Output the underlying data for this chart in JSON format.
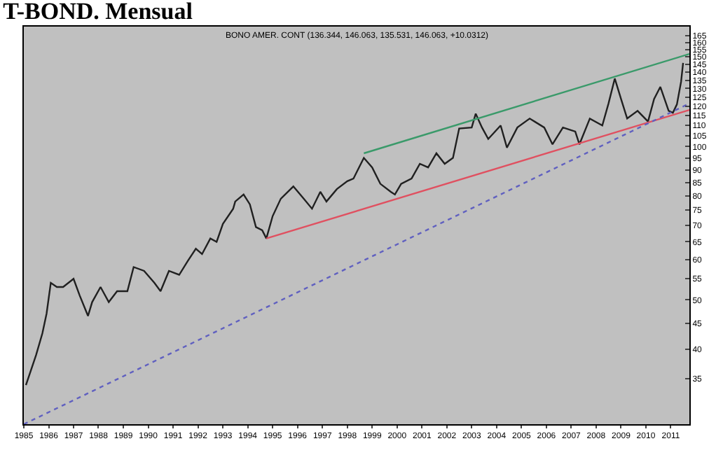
{
  "chart_data": {
    "type": "line",
    "title": "T-BOND. Mensual",
    "subtitle": "BONO AMER. CONT (136.344, 146.063, 135.531, 146.063, +10.0312)",
    "series": [
      {
        "color": "#202020",
        "x": [
          "1985-02",
          "1985-07",
          "1985-10",
          "1985-12",
          "1986-02",
          "1986-05",
          "1986-08",
          "1987-01",
          "1987-04",
          "1987-08",
          "1987-10",
          "1988-02",
          "1988-06",
          "1988-10",
          "1989-03",
          "1989-06",
          "1989-11",
          "1990-04",
          "1990-07",
          "1990-11",
          "1991-04",
          "1991-08",
          "1991-12",
          "1992-03",
          "1992-07",
          "1992-10",
          "1993-01",
          "1993-06",
          "1993-07",
          "1993-11",
          "1994-02",
          "1994-05",
          "1994-08",
          "1994-10",
          "1995-01",
          "1995-05",
          "1995-11",
          "1996-04",
          "1996-08",
          "1996-12",
          "1997-03",
          "1997-08",
          "1998-01",
          "1998-04",
          "1998-09",
          "1999-01",
          "1999-05",
          "1999-10",
          "1999-12",
          "2000-03",
          "2000-08",
          "2000-12",
          "2001-04",
          "2001-08",
          "2001-12",
          "2002-04",
          "2002-07",
          "2003-01",
          "2003-03",
          "2003-06",
          "2003-09",
          "2004-03",
          "2004-06",
          "2004-11",
          "2005-05",
          "2005-12",
          "2006-04",
          "2006-09",
          "2007-03",
          "2007-05",
          "2007-10",
          "2008-04",
          "2008-07",
          "2008-10",
          "2009-01",
          "2009-04",
          "2009-09",
          "2010-02",
          "2010-05",
          "2010-08",
          "2010-12",
          "2011-02",
          "2011-04",
          "2011-06",
          "2011-07"
        ],
        "values": [
          34,
          39,
          43,
          47,
          54,
          53,
          53,
          55,
          51,
          46.5,
          49.5,
          53,
          49.5,
          52,
          52,
          58,
          57,
          54,
          52,
          57,
          56,
          59.5,
          63,
          61.5,
          66,
          65,
          70.5,
          75.5,
          78,
          80.5,
          77,
          69.5,
          68.5,
          66,
          73,
          79,
          83.5,
          79,
          75.5,
          81.5,
          78,
          82.5,
          85.5,
          86.5,
          95,
          91,
          84.5,
          81.5,
          80.5,
          84.5,
          86.5,
          92.5,
          91,
          97,
          92.5,
          95,
          108.5,
          109,
          116,
          109,
          103.5,
          110,
          99.5,
          109,
          113.5,
          109,
          101,
          109,
          107,
          101,
          113.5,
          110,
          121.5,
          136,
          124,
          113.5,
          117.5,
          112,
          124,
          131,
          117.5,
          116.5,
          121,
          134,
          146
        ]
      },
      {
        "color": "#3a9a6a",
        "x": [
          "1998-09",
          "2011-10"
        ],
        "values": [
          97,
          152
        ]
      },
      {
        "color": "#e05060",
        "x": [
          "1994-10",
          "2011-10"
        ],
        "values": [
          66,
          118
        ]
      },
      {
        "color": "#6060c0",
        "line_style": "dotted",
        "x": [
          "1985-01",
          "2011-10"
        ],
        "values": [
          28.5,
          121.5
        ]
      }
    ],
    "xlim": [
      "1985-01",
      "2011-10"
    ],
    "xticks": [
      "1985",
      "1986",
      "1987",
      "1988",
      "1989",
      "1990",
      "1991",
      "1992",
      "1993",
      "1994",
      "1995",
      "1996",
      "1997",
      "1998",
      "1999",
      "2000",
      "2001",
      "2002",
      "2003",
      "2004",
      "2005",
      "2006",
      "2007",
      "2008",
      "2009",
      "2010",
      "2011"
    ],
    "log": true,
    "ylim": [
      28.5,
      172
    ],
    "yticks": [
      35,
      40,
      45,
      50,
      55,
      60,
      65,
      70,
      75,
      80,
      85,
      90,
      95,
      100,
      105,
      110,
      115,
      120,
      125,
      130,
      135,
      140,
      145,
      150,
      155,
      160,
      165
    ],
    "grid": false
  }
}
